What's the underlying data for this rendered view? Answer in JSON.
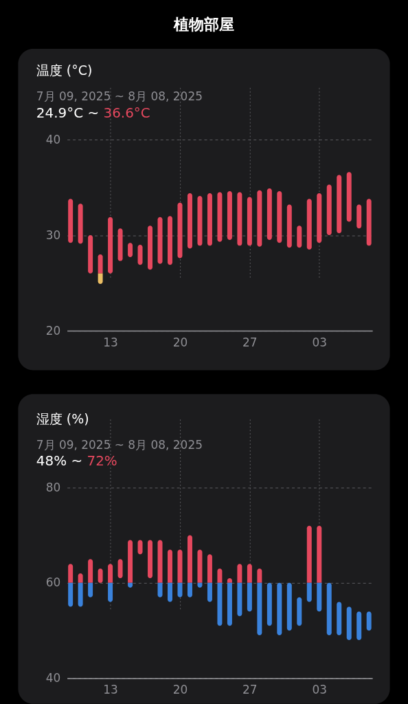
{
  "chart_data": [
    {
      "type": "other",
      "title": "植物部屋"
    },
    {
      "type": "bar",
      "title": "温度 (°C)",
      "subtitle": "7月 09, 2025 ~ 8月 08, 2025",
      "annotations": [
        "24.9°C ~",
        "36.6°C"
      ],
      "x": [
        "2025-07-09",
        "2025-07-10",
        "2025-07-11",
        "2025-07-12",
        "2025-07-13",
        "2025-07-14",
        "2025-07-15",
        "2025-07-16",
        "2025-07-17",
        "2025-07-18",
        "2025-07-19",
        "2025-07-20",
        "2025-07-21",
        "2025-07-22",
        "2025-07-23",
        "2025-07-24",
        "2025-07-25",
        "2025-07-26",
        "2025-07-27",
        "2025-07-28",
        "2025-07-29",
        "2025-07-30",
        "2025-07-31",
        "2025-08-01",
        "2025-08-02",
        "2025-08-03",
        "2025-08-04",
        "2025-08-05",
        "2025-08-06",
        "2025-08-07",
        "2025-08-08"
      ],
      "xlim": [
        "2025-07-09",
        "2025-08-08"
      ],
      "xticks": [
        {
          "value": "2025-07-13",
          "label": "13"
        },
        {
          "value": "2025-07-20",
          "label": "20"
        },
        {
          "value": "2025-07-27",
          "label": "27"
        },
        {
          "value": "2025-08-03",
          "label": "03"
        }
      ],
      "ylim": [
        20,
        40
      ],
      "yticks": [
        20,
        30,
        40
      ],
      "grid": true,
      "series": [
        {
          "color": "#ebbe64",
          "base": [
            null,
            null,
            null,
            24.9,
            null,
            null,
            null,
            null,
            null,
            null,
            null,
            null,
            null,
            null,
            null,
            null,
            null,
            null,
            null,
            null,
            null,
            null,
            null,
            null,
            null,
            null,
            null,
            null,
            null,
            null,
            null
          ],
          "values": [
            null,
            null,
            null,
            1.1,
            null,
            null,
            null,
            null,
            null,
            null,
            null,
            null,
            null,
            null,
            null,
            null,
            null,
            null,
            null,
            null,
            null,
            null,
            null,
            null,
            null,
            null,
            null,
            null,
            null,
            null,
            null
          ]
        },
        {
          "color": "#e5485e",
          "base": [
            29.2,
            29.1,
            26.0,
            26.0,
            26.0,
            27.3,
            27.7,
            26.9,
            26.4,
            27.0,
            26.9,
            27.6,
            28.6,
            28.9,
            28.9,
            29.3,
            29.5,
            28.9,
            28.9,
            28.8,
            29.5,
            29.2,
            28.7,
            28.7,
            28.5,
            29.2,
            30.0,
            30.2,
            31.4,
            30.7,
            28.9
          ],
          "values": [
            4.6,
            4.2,
            4.0,
            2.0,
            5.9,
            3.4,
            1.5,
            2.1,
            4.6,
            4.9,
            5.1,
            5.8,
            5.8,
            5.2,
            5.5,
            5.2,
            5.1,
            5.6,
            5.1,
            5.9,
            5.4,
            5.4,
            4.5,
            2.3,
            5.3,
            5.2,
            5.3,
            6.1,
            5.2,
            2.5,
            4.9
          ]
        }
      ]
    },
    {
      "type": "bar",
      "title": "湿度 (%)",
      "subtitle": "7月 09, 2025 ~ 8月 08, 2025",
      "annotations": [
        "48% ~",
        "72%"
      ],
      "x": [
        "2025-07-09",
        "2025-07-10",
        "2025-07-11",
        "2025-07-12",
        "2025-07-13",
        "2025-07-14",
        "2025-07-15",
        "2025-07-16",
        "2025-07-17",
        "2025-07-18",
        "2025-07-19",
        "2025-07-20",
        "2025-07-21",
        "2025-07-22",
        "2025-07-23",
        "2025-07-24",
        "2025-07-25",
        "2025-07-26",
        "2025-07-27",
        "2025-07-28",
        "2025-07-29",
        "2025-07-30",
        "2025-07-31",
        "2025-08-01",
        "2025-08-02",
        "2025-08-03",
        "2025-08-04",
        "2025-08-05",
        "2025-08-06",
        "2025-08-07",
        "2025-08-08"
      ],
      "xlim": [
        "2025-07-09",
        "2025-08-08"
      ],
      "xticks": [
        {
          "value": "2025-07-13",
          "label": "13"
        },
        {
          "value": "2025-07-20",
          "label": "20"
        },
        {
          "value": "2025-07-27",
          "label": "27"
        },
        {
          "value": "2025-08-03",
          "label": "03"
        }
      ],
      "ylim": [
        40,
        80
      ],
      "yticks": [
        40,
        60,
        80
      ],
      "grid": true,
      "series": [
        {
          "color": "#3a82dc",
          "base": [
            55,
            55,
            57,
            null,
            56,
            null,
            59,
            null,
            null,
            57,
            56,
            57,
            57,
            59,
            56,
            51,
            51,
            53,
            54,
            49,
            51,
            49,
            50,
            51,
            56,
            54,
            49,
            49,
            48,
            48,
            50
          ],
          "values": [
            5,
            5,
            3,
            null,
            4,
            null,
            1,
            null,
            null,
            3,
            4,
            3,
            3,
            1,
            4,
            9,
            9,
            7,
            6,
            11,
            9,
            11,
            10,
            6,
            4,
            6,
            11,
            7,
            7,
            6,
            4
          ]
        },
        {
          "color": "#e5485e",
          "base": [
            60,
            60,
            60,
            60,
            60,
            61,
            60,
            66,
            61,
            60,
            60,
            60,
            60,
            60,
            60,
            60,
            60,
            60,
            60,
            60,
            null,
            null,
            null,
            null,
            60,
            60,
            null,
            null,
            null,
            null,
            null
          ],
          "values": [
            4,
            2,
            5,
            3,
            4,
            4,
            9,
            3,
            8,
            9,
            7,
            7,
            10,
            7,
            6,
            3,
            1,
            4,
            4,
            3,
            null,
            null,
            null,
            null,
            12,
            12,
            null,
            null,
            null,
            null,
            null
          ]
        }
      ]
    }
  ]
}
